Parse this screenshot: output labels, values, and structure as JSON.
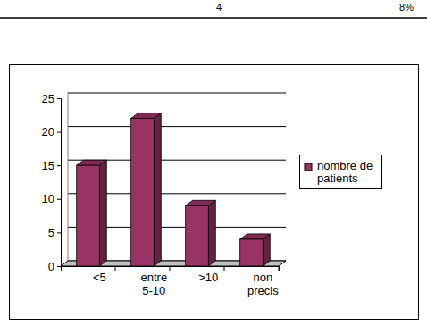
{
  "table": {
    "rows": [
      [
        "4",
        "8%"
      ]
    ]
  },
  "chart_data": {
    "type": "bar",
    "categories": [
      "<5",
      "entre 5-10",
      ">10",
      "non precis"
    ],
    "series": [
      {
        "name": "nombre de patients",
        "color": "#993366",
        "values": [
          15,
          22,
          9,
          4
        ]
      }
    ],
    "ylim": [
      0,
      25
    ],
    "yticks": [
      0,
      5,
      10,
      15,
      20,
      25
    ],
    "grid": true,
    "legend": "right"
  }
}
